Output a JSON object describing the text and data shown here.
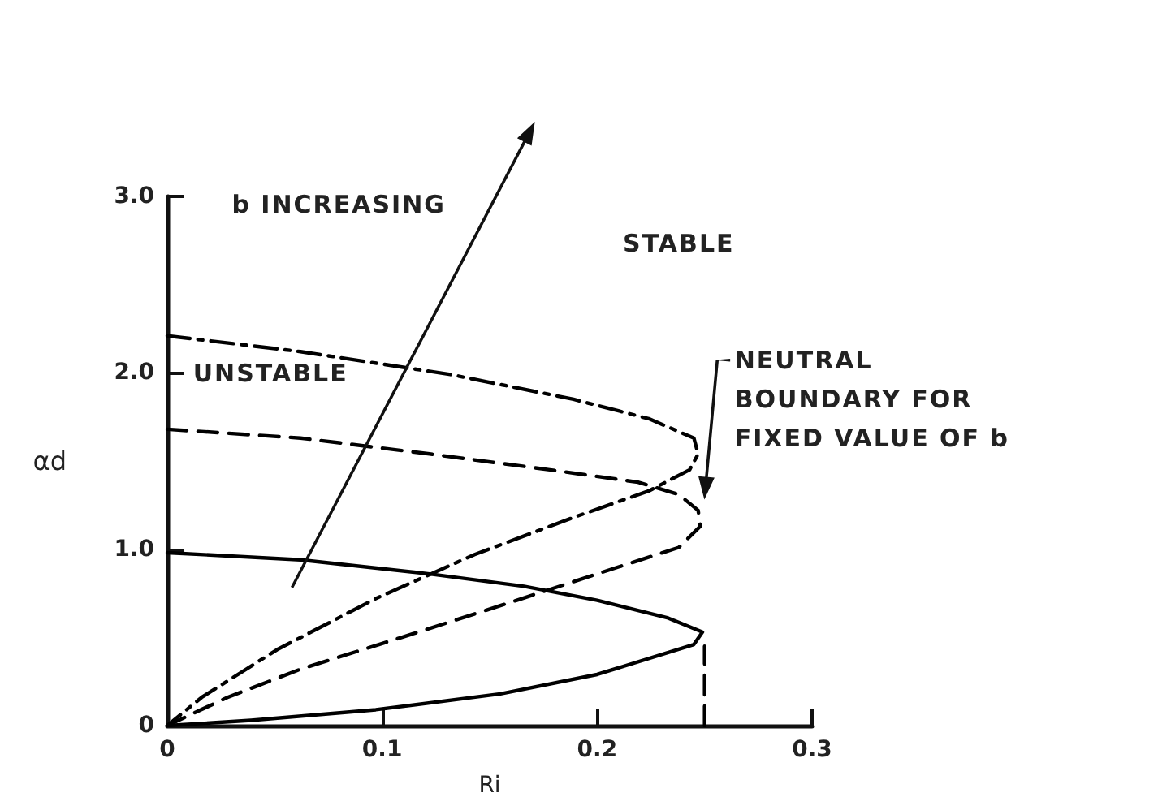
{
  "chart_data": {
    "type": "line",
    "xlabel": "Ri",
    "ylabel": "αd",
    "annotations": [
      "b INCREASING",
      "STABLE",
      "UNSTABLE",
      "NEUTRAL\nBOUNDARY FOR\nFIXED VALUE OF b"
    ],
    "xlim": [
      0,
      0.3
    ],
    "ylim": [
      0,
      3
    ],
    "xticks": [
      0,
      0.1,
      0.2,
      0.3
    ],
    "yticks": [
      0,
      {
        "value": 1,
        "label": "1.0"
      },
      {
        "value": 2,
        "label": "2.0"
      },
      {
        "value": 3,
        "label": "3.0"
      }
    ],
    "grid": false,
    "marker": "none",
    "series": [
      {
        "color": "#000000",
        "line_style": "solid",
        "x": [
          0,
          0.062,
          0.122,
          0.166,
          0.2,
          0.233,
          0.249,
          0.245,
          0.2,
          0.155,
          0.097,
          0.039,
          0
        ],
        "values": [
          0.98,
          0.94,
          0.86,
          0.79,
          0.71,
          0.61,
          0.53,
          0.46,
          0.29,
          0.18,
          0.09,
          0.03,
          0
        ]
      },
      {
        "color": "#000000",
        "line_style": "dashed",
        "x": [
          0,
          0.062,
          0.122,
          0.178,
          0.219,
          0.238,
          0.247,
          0.248,
          0.238,
          0.2,
          0.155,
          0.109,
          0.062,
          0.028,
          0
        ],
        "values": [
          1.68,
          1.63,
          1.54,
          1.45,
          1.38,
          1.31,
          1.22,
          1.13,
          1.01,
          0.86,
          0.68,
          0.5,
          0.32,
          0.16,
          0
        ]
      },
      {
        "color": "#000000",
        "line_style": "dashdot",
        "x": [
          0,
          0.062,
          0.132,
          0.189,
          0.224,
          0.245,
          0.247,
          0.243,
          0.224,
          0.189,
          0.143,
          0.097,
          0.051,
          0.016,
          0
        ],
        "values": [
          2.21,
          2.12,
          1.99,
          1.85,
          1.74,
          1.63,
          1.54,
          1.45,
          1.33,
          1.18,
          0.97,
          0.72,
          0.43,
          0.16,
          0
        ]
      },
      {
        "color": "#000000",
        "line_style": "dashed",
        "x": [
          0.25,
          0.25
        ],
        "values": [
          0,
          0.45
        ]
      }
    ]
  }
}
